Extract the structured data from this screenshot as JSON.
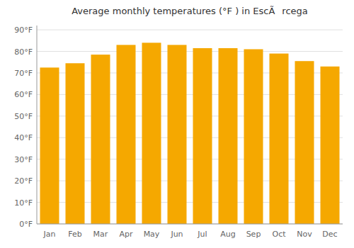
{
  "chart_data": {
    "type": "bar",
    "title": "Average monthly temperatures (°F ) in EscÃrcega",
    "categories": [
      "Jan",
      "Feb",
      "Mar",
      "Apr",
      "May",
      "Jun",
      "Jul",
      "Aug",
      "Sep",
      "Oct",
      "Nov",
      "Dec"
    ],
    "values": [
      72.5,
      74.5,
      78.5,
      83.0,
      84.0,
      83.0,
      81.5,
      81.5,
      81.0,
      79.0,
      75.5,
      73.0
    ],
    "color": "#F5A800",
    "ylim": [
      0,
      92
    ],
    "yticks": [
      {
        "value": 0,
        "label": "0°F"
      },
      {
        "value": 10,
        "label": "10°F"
      },
      {
        "value": 20,
        "label": "20°F"
      },
      {
        "value": 30,
        "label": "30°F"
      },
      {
        "value": 40,
        "label": "40°F"
      },
      {
        "value": 50,
        "label": "50°F"
      },
      {
        "value": 60,
        "label": "60°F"
      },
      {
        "value": 70,
        "label": "70°F"
      },
      {
        "value": 80,
        "label": "80°F"
      },
      {
        "value": 90,
        "label": "90°F"
      }
    ],
    "grid": true
  }
}
